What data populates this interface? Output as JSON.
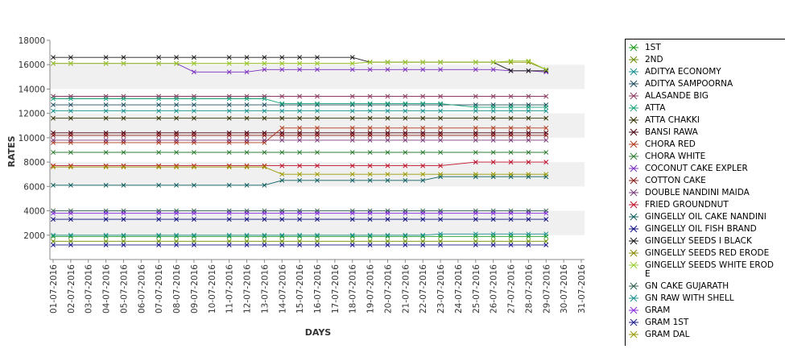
{
  "chart_data": {
    "type": "line",
    "xlabel": "DAYS",
    "ylabel": "RATES",
    "ylim": [
      0,
      18000
    ],
    "yticks": [
      2000,
      4000,
      6000,
      8000,
      10000,
      12000,
      14000,
      16000,
      18000
    ],
    "grid": "alternating horizontal bands",
    "legend_position": "right",
    "x": [
      "01-07-2016",
      "02-07-2016",
      "03-07-2016",
      "04-07-2016",
      "05-07-2016",
      "06-07-2016",
      "07-07-2016",
      "08-07-2016",
      "09-07-2016",
      "10-07-2016",
      "11-07-2016",
      "12-07-2016",
      "13-07-2016",
      "14-07-2016",
      "15-07-2016",
      "16-07-2016",
      "17-07-2016",
      "18-07-2016",
      "19-07-2016",
      "20-07-2016",
      "21-07-2016",
      "22-07-2016",
      "23-07-2016",
      "24-07-2016",
      "25-07-2016",
      "26-07-2016",
      "27-07-2016",
      "28-07-2016",
      "29-07-2016",
      "30-07-2016",
      "31-07-2016"
    ],
    "series": [
      {
        "name": "1ST",
        "color": "#1a9a1a",
        "values": [
          1900,
          1900,
          null,
          1900,
          1900,
          null,
          1900,
          1900,
          1900,
          null,
          1900,
          1900,
          1900,
          1900,
          1900,
          1900,
          null,
          1900,
          1900,
          1900,
          1900,
          1900,
          1900,
          null,
          1900,
          1900,
          1900,
          1900,
          1900,
          null,
          null
        ]
      },
      {
        "name": "2ND",
        "color": "#6b8e00",
        "values": [
          1500,
          1500,
          null,
          1500,
          1500,
          null,
          1500,
          1500,
          1500,
          null,
          1500,
          1500,
          1500,
          1500,
          1500,
          1500,
          null,
          1500,
          1500,
          1500,
          1500,
          1500,
          1500,
          null,
          1500,
          1500,
          1500,
          1500,
          1500,
          null,
          null
        ]
      },
      {
        "name": "ADITYA ECONOMY",
        "color": "#178f8f",
        "values": [
          12200,
          12200,
          null,
          12200,
          12200,
          null,
          12200,
          12200,
          12200,
          null,
          12200,
          12200,
          12200,
          12200,
          12200,
          12200,
          null,
          12200,
          12200,
          12200,
          12200,
          12200,
          12200,
          null,
          12200,
          12200,
          12200,
          12200,
          12200,
          null,
          null
        ]
      },
      {
        "name": "ADITYA SAMPOORNA",
        "color": "#1f4f5f",
        "values": [
          12700,
          12700,
          null,
          12700,
          12700,
          null,
          12700,
          12700,
          12700,
          null,
          12700,
          12700,
          12700,
          12700,
          12700,
          12700,
          null,
          12700,
          12700,
          12700,
          12700,
          12700,
          12700,
          null,
          12700,
          12700,
          12700,
          12700,
          12700,
          null,
          null
        ]
      },
      {
        "name": "ALASANDE BIG",
        "color": "#8b3a62",
        "values": [
          13400,
          13400,
          null,
          13400,
          13400,
          null,
          13400,
          13400,
          13400,
          null,
          13400,
          13400,
          13400,
          13400,
          13400,
          13400,
          null,
          13400,
          13400,
          13400,
          13400,
          13400,
          13400,
          null,
          13400,
          13400,
          13400,
          13400,
          13400,
          null,
          null
        ]
      },
      {
        "name": "ATTA",
        "color": "#1aa37a",
        "values": [
          13200,
          13200,
          null,
          13200,
          13200,
          null,
          13200,
          13200,
          13200,
          null,
          13200,
          13200,
          13200,
          12800,
          12800,
          12800,
          null,
          12800,
          12800,
          12800,
          12800,
          12800,
          12800,
          null,
          12500,
          12500,
          12500,
          12500,
          12500,
          null,
          null
        ]
      },
      {
        "name": "ATTA CHAKKI",
        "color": "#2f2f00",
        "values": [
          11600,
          11600,
          null,
          11600,
          11600,
          null,
          11600,
          11600,
          11600,
          null,
          11600,
          11600,
          11600,
          11600,
          11600,
          11600,
          null,
          11600,
          11600,
          11600,
          11600,
          11600,
          11600,
          null,
          11600,
          11600,
          11600,
          11600,
          11600,
          null,
          null
        ]
      },
      {
        "name": "BANSI RAWA",
        "color": "#4a0010",
        "values": [
          10400,
          10400,
          null,
          10400,
          10400,
          null,
          10400,
          10400,
          10400,
          null,
          10400,
          10400,
          10400,
          10400,
          10400,
          10400,
          null,
          10400,
          10400,
          10400,
          10400,
          10400,
          10400,
          null,
          10400,
          10400,
          10400,
          10400,
          10400,
          null,
          null
        ]
      },
      {
        "name": "CHORA RED",
        "color": "#b03a1a",
        "values": [
          9600,
          9600,
          null,
          9600,
          9600,
          null,
          9600,
          9600,
          9600,
          null,
          9600,
          9600,
          9600,
          10800,
          10800,
          10800,
          null,
          10800,
          10800,
          10800,
          10800,
          10800,
          10800,
          null,
          10800,
          10800,
          10800,
          10800,
          10800,
          null,
          null
        ]
      },
      {
        "name": "CHORA WHITE",
        "color": "#2e7d32",
        "values": [
          8800,
          8800,
          null,
          8800,
          8800,
          null,
          8800,
          8800,
          8800,
          null,
          8800,
          8800,
          8800,
          8800,
          8800,
          8800,
          null,
          8800,
          8800,
          8800,
          8800,
          8800,
          8800,
          null,
          8800,
          8800,
          8800,
          8800,
          8800,
          null,
          null
        ]
      },
      {
        "name": "COCONUT CAKE EXPLER",
        "color": "#7b2fbf",
        "values": [
          16100,
          16100,
          null,
          16100,
          16100,
          null,
          16100,
          16100,
          15400,
          null,
          15400,
          15400,
          15600,
          15600,
          15600,
          15600,
          null,
          15600,
          15600,
          15600,
          15600,
          15600,
          15600,
          null,
          15600,
          15600,
          15500,
          15500,
          15400,
          null,
          null
        ]
      },
      {
        "name": "COTTON CAKE",
        "color": "#8b1a1a",
        "values": [
          10200,
          10200,
          null,
          10200,
          10200,
          null,
          10200,
          10200,
          10200,
          null,
          10200,
          10200,
          10200,
          10200,
          10200,
          10200,
          null,
          10200,
          10200,
          10200,
          10200,
          10200,
          10200,
          null,
          10200,
          10200,
          10200,
          10200,
          10200,
          null,
          null
        ]
      },
      {
        "name": "DOUBLE NANDINI MAIDA",
        "color": "#7a3d7a",
        "values": [
          9800,
          9800,
          null,
          9800,
          9800,
          null,
          9800,
          9800,
          9800,
          null,
          9800,
          9800,
          9800,
          9800,
          9800,
          9800,
          null,
          9800,
          9800,
          9800,
          9800,
          9800,
          9800,
          null,
          9800,
          9800,
          9800,
          9800,
          9800,
          null,
          null
        ]
      },
      {
        "name": "FRIED GROUNDNUT",
        "color": "#c0102a",
        "values": [
          7700,
          7700,
          null,
          7700,
          7700,
          null,
          7700,
          7700,
          7700,
          null,
          7700,
          7700,
          7700,
          7700,
          7700,
          7700,
          null,
          7700,
          7700,
          7700,
          7700,
          7700,
          7700,
          null,
          8000,
          8000,
          8000,
          8000,
          8000,
          null,
          null
        ]
      },
      {
        "name": "GINGELLY OIL CAKE NANDINI",
        "color": "#0f5f5f",
        "values": [
          6100,
          6100,
          null,
          6100,
          6100,
          null,
          6100,
          6100,
          6100,
          null,
          6100,
          6100,
          6100,
          6500,
          6500,
          6500,
          null,
          6500,
          6500,
          6500,
          6500,
          6500,
          6800,
          null,
          6800,
          6800,
          6800,
          6800,
          6800,
          null,
          null
        ]
      },
      {
        "name": "GINGELLY OIL FISH BRAND",
        "color": "#101080",
        "values": [
          3300,
          3300,
          null,
          3300,
          3300,
          null,
          3300,
          3300,
          3300,
          null,
          3300,
          3300,
          3300,
          3300,
          3300,
          3300,
          null,
          3300,
          3300,
          3300,
          3300,
          3300,
          3300,
          null,
          3300,
          3300,
          3300,
          3300,
          3300,
          null,
          null
        ]
      },
      {
        "name": "GINGELLY SEEDS I BLACK",
        "color": "#1a1a1a",
        "values": [
          16600,
          16600,
          null,
          16600,
          16600,
          null,
          16600,
          16600,
          16600,
          null,
          16600,
          16600,
          16600,
          16600,
          16600,
          16600,
          null,
          16600,
          16200,
          16200,
          16200,
          16200,
          16200,
          null,
          16200,
          16200,
          15500,
          15500,
          15500,
          null,
          null
        ]
      },
      {
        "name": "GINGELLY SEEDS RED ERODE",
        "color": "#8a8a00",
        "values": [
          16100,
          16100,
          null,
          16100,
          16100,
          null,
          16100,
          16100,
          16100,
          null,
          16100,
          16100,
          16100,
          16100,
          16100,
          16100,
          null,
          16100,
          16200,
          16200,
          16200,
          16200,
          16200,
          null,
          16200,
          16200,
          16200,
          16200,
          15600,
          null,
          null
        ]
      },
      {
        "name": "GINGELLY SEEDS WHITE ERODE",
        "color": "#9acd32",
        "values": [
          16100,
          16100,
          null,
          16100,
          16100,
          null,
          16100,
          16100,
          16100,
          null,
          16100,
          16100,
          16100,
          16100,
          16100,
          16100,
          null,
          16100,
          16200,
          16200,
          16200,
          16200,
          16200,
          null,
          16200,
          16200,
          16300,
          16300,
          15600,
          null,
          null
        ]
      },
      {
        "name": "GN CAKE GUJARATH",
        "color": "#2f5f4f",
        "values": [
          4000,
          4000,
          null,
          4000,
          4000,
          null,
          4000,
          4000,
          4000,
          null,
          4000,
          4000,
          4000,
          4000,
          4000,
          4000,
          null,
          4000,
          4000,
          4000,
          4000,
          4000,
          4000,
          null,
          4000,
          4000,
          4000,
          4000,
          4000,
          null,
          null
        ]
      },
      {
        "name": "GN RAW WITH SHELL",
        "color": "#1a8f8f",
        "values": [
          2000,
          2000,
          null,
          2000,
          2000,
          null,
          2000,
          2000,
          2000,
          null,
          2000,
          2000,
          2000,
          2000,
          2000,
          2000,
          null,
          2000,
          2000,
          2000,
          2000,
          2000,
          2100,
          null,
          2100,
          2100,
          2100,
          2100,
          2100,
          null,
          null
        ]
      },
      {
        "name": "GRAM",
        "color": "#8a2be2",
        "values": [
          3800,
          3800,
          null,
          3800,
          3800,
          null,
          3800,
          3800,
          3800,
          null,
          3800,
          3800,
          3800,
          3800,
          3800,
          3800,
          null,
          3800,
          3800,
          3800,
          3800,
          3800,
          3800,
          null,
          3800,
          3800,
          3800,
          3800,
          3800,
          null,
          null
        ]
      },
      {
        "name": "GRAM 1ST",
        "color": "#1a1a8f",
        "values": [
          1200,
          1200,
          null,
          1200,
          1200,
          null,
          1200,
          1200,
          1200,
          null,
          1200,
          1200,
          1200,
          1200,
          1200,
          1200,
          null,
          1200,
          1200,
          1200,
          1200,
          1200,
          1200,
          null,
          1200,
          1200,
          1200,
          1200,
          1200,
          null,
          null
        ]
      },
      {
        "name": "GRAM DAL",
        "color": "#9a9a00",
        "values": [
          7600,
          7600,
          null,
          7600,
          7600,
          null,
          7600,
          7600,
          7600,
          null,
          7600,
          7600,
          7600,
          7000,
          7000,
          7000,
          null,
          7000,
          7000,
          7000,
          7000,
          7000,
          7000,
          null,
          7000,
          7000,
          7000,
          7000,
          7000,
          null,
          null
        ]
      }
    ],
    "legend_labels": {
      "gingelly_white_line1": "GINGELLY SEEDS WHITE EROD",
      "gingelly_white_line2": "E"
    }
  }
}
